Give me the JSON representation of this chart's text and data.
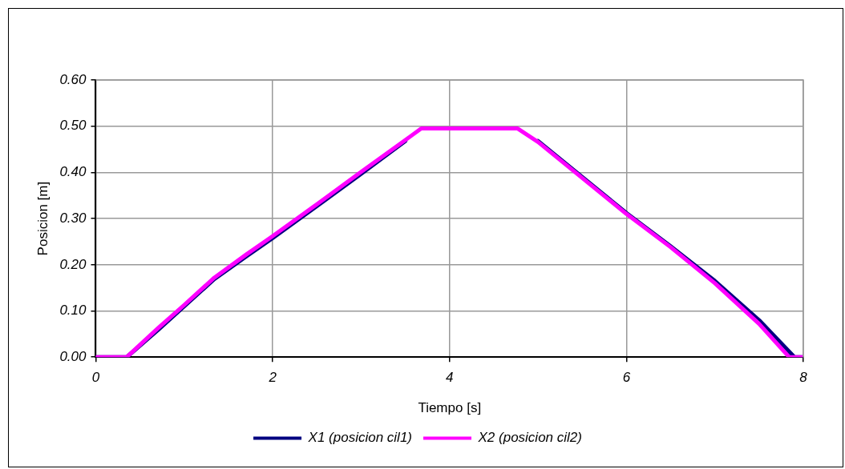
{
  "chart_data": {
    "type": "line",
    "xlabel": "Tiempo [s]",
    "ylabel": "Posicion [m]",
    "xlim": [
      0,
      8
    ],
    "xticks": [
      0,
      2,
      4,
      6,
      8
    ],
    "ylim": [
      0,
      0.6
    ],
    "yticks": [
      {
        "value": 0,
        "label": "0.00"
      },
      {
        "value": 0.1,
        "label": "0.10"
      },
      {
        "value": 0.2,
        "label": "0.20"
      },
      {
        "value": 0.3,
        "label": "0.30"
      },
      {
        "value": 0.4,
        "label": "0.40"
      },
      {
        "value": 0.5,
        "label": "0.50"
      },
      {
        "value": 0.6,
        "label": "0.60"
      }
    ],
    "grid": true,
    "legend": "bottom",
    "marker": "none",
    "line_style": "solid",
    "series": [
      {
        "name": "X1 (posicion cil1)",
        "color": "#000080",
        "x": [
          0,
          0.35,
          0.7,
          1.0,
          1.34,
          1.7,
          2.0,
          2.5,
          3.0,
          3.5,
          3.68,
          4.0,
          4.5,
          4.77,
          5.0,
          5.5,
          6.0,
          6.5,
          7.0,
          7.5,
          7.9,
          8.0
        ],
        "values": [
          0,
          0,
          0.058,
          0.11,
          0.169,
          0.218,
          0.258,
          0.327,
          0.397,
          0.468,
          null,
          null,
          null,
          null,
          0.468,
          0.39,
          0.312,
          0.24,
          0.165,
          0.08,
          0,
          0
        ]
      },
      {
        "name": "X2 (posicion cil2)",
        "color": "#ff00ff",
        "x": [
          0,
          0.35,
          0.7,
          1.0,
          1.34,
          1.7,
          2.0,
          2.5,
          3.0,
          3.5,
          3.68,
          4.0,
          4.5,
          4.77,
          5.0,
          5.5,
          6.0,
          6.5,
          7.0,
          7.5,
          7.84,
          8.0
        ],
        "values": [
          0,
          0,
          0.062,
          0.113,
          0.172,
          0.222,
          0.262,
          0.331,
          0.401,
          0.47,
          0.495,
          0.495,
          0.495,
          0.495,
          0.466,
          0.388,
          0.31,
          0.238,
          0.16,
          0.072,
          0,
          0
        ]
      }
    ]
  }
}
